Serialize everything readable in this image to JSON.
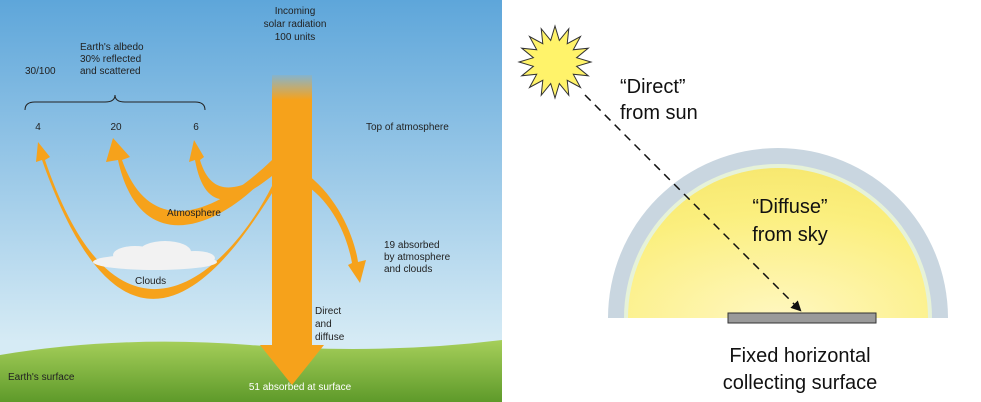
{
  "left_panel": {
    "incoming": [
      "Incoming",
      "solar radiation",
      "100 units"
    ],
    "albedo": [
      "Earth's albedo",
      "30% reflected",
      "and scattered"
    ],
    "albedo_fraction": "30/100",
    "reflected": [
      "4",
      "20",
      "6"
    ],
    "top_of_atmosphere": "Top of atmosphere",
    "atmosphere": "Atmosphere",
    "absorbed_atmosphere": [
      "19 absorbed",
      "by atmosphere",
      "and clouds"
    ],
    "clouds": "Clouds",
    "direct_diffuse": [
      "Direct",
      "and",
      "diffuse"
    ],
    "earth_surface": "Earth's surface",
    "absorbed_surface": "51 absorbed at surface"
  },
  "right_panel": {
    "direct": [
      "“Direct”",
      "from sun"
    ],
    "diffuse": [
      "“Diffuse”",
      "from sky"
    ],
    "surface": [
      "Fixed horizontal",
      "collecting surface"
    ]
  }
}
